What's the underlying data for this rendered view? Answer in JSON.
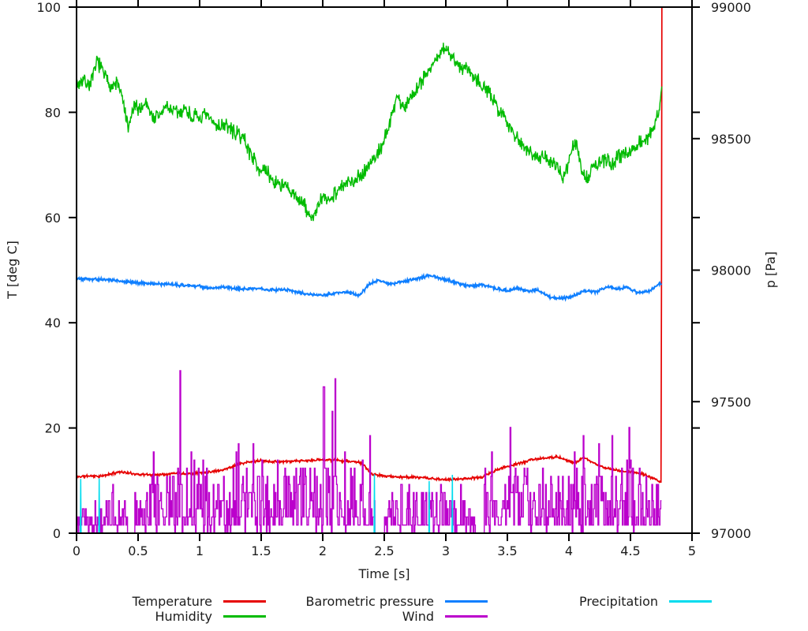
{
  "figure": {
    "background": "#ffffff",
    "text_color": "#1c1c1c",
    "axis_color": "#000000"
  },
  "chart_data": {
    "type": "line",
    "title": "",
    "grid": false,
    "legend_position": "bottom",
    "x_axis": {
      "label": "Time [s]",
      "range": [
        0,
        5
      ],
      "tick_values": [
        0,
        0.5,
        1,
        1.5,
        2,
        2.5,
        3,
        3.5,
        4,
        4.5,
        5
      ],
      "tick_labels": [
        "0",
        "0.5",
        "1",
        "1.5",
        "2",
        "2.5",
        "3",
        "3.5",
        "4",
        "4.5",
        "5"
      ]
    },
    "y_axis": {
      "label": "T [deg C]",
      "range": [
        0,
        100
      ],
      "tick_values": [
        0,
        20,
        40,
        60,
        80,
        100
      ],
      "tick_labels": [
        "0",
        "20",
        "40",
        "60",
        "80",
        "100"
      ]
    },
    "y2_axis": {
      "label": "p [Pa]",
      "range": [
        97000,
        99000
      ],
      "tick_values": [
        97000,
        97500,
        98000,
        98500,
        99000
      ],
      "tick_labels": [
        "97000",
        "97500",
        "98000",
        "98500",
        "99000"
      ]
    },
    "series": [
      {
        "name": "Temperature",
        "color": "#e60000",
        "axis": "y1",
        "style": "noisy",
        "width": 1.7,
        "noise": 0.28,
        "dt": 0.004,
        "seed": 11,
        "clamp_max": 100,
        "keypoints": [
          [
            0,
            10.7
          ],
          [
            0.1,
            10.9
          ],
          [
            0.2,
            10.8
          ],
          [
            0.3,
            11.4
          ],
          [
            0.35,
            11.7
          ],
          [
            0.4,
            11.5
          ],
          [
            0.5,
            11.2
          ],
          [
            0.6,
            11.1
          ],
          [
            0.7,
            11.2
          ],
          [
            0.8,
            11.4
          ],
          [
            0.9,
            11.3
          ],
          [
            1.0,
            11.5
          ],
          [
            1.1,
            11.7
          ],
          [
            1.2,
            12.1
          ],
          [
            1.3,
            13.0
          ],
          [
            1.35,
            13.3
          ],
          [
            1.4,
            13.5
          ],
          [
            1.5,
            13.8
          ],
          [
            1.6,
            13.6
          ],
          [
            1.7,
            13.6
          ],
          [
            1.8,
            13.7
          ],
          [
            1.9,
            13.8
          ],
          [
            2.0,
            14.0
          ],
          [
            2.1,
            13.9
          ],
          [
            2.2,
            13.7
          ],
          [
            2.3,
            13.5
          ],
          [
            2.35,
            12.5
          ],
          [
            2.4,
            11.2
          ],
          [
            2.45,
            11.0
          ],
          [
            2.5,
            10.9
          ],
          [
            2.6,
            10.7
          ],
          [
            2.8,
            10.6
          ],
          [
            2.95,
            10.2
          ],
          [
            3.05,
            10.2
          ],
          [
            3.15,
            10.4
          ],
          [
            3.25,
            10.5
          ],
          [
            3.3,
            10.7
          ],
          [
            3.4,
            11.9
          ],
          [
            3.5,
            12.7
          ],
          [
            3.6,
            13.3
          ],
          [
            3.7,
            14.0
          ],
          [
            3.8,
            14.2
          ],
          [
            3.9,
            14.6
          ],
          [
            4.0,
            13.7
          ],
          [
            4.05,
            13.4
          ],
          [
            4.12,
            14.4
          ],
          [
            4.2,
            13.3
          ],
          [
            4.3,
            12.4
          ],
          [
            4.4,
            11.9
          ],
          [
            4.5,
            11.7
          ],
          [
            4.6,
            11.3
          ],
          [
            4.65,
            10.7
          ],
          [
            4.7,
            10.3
          ],
          [
            4.74,
            9.6
          ],
          [
            4.75,
            9.5
          ],
          [
            4.755,
            100
          ]
        ]
      },
      {
        "name": "Humidity",
        "color": "#00bb00",
        "axis": "y1",
        "style": "noisy",
        "width": 1.4,
        "noise": 1.8,
        "dt": 0.004,
        "seed": 7,
        "keypoints": [
          [
            0,
            84.9
          ],
          [
            0.05,
            86.3
          ],
          [
            0.1,
            85.2
          ],
          [
            0.14,
            87.0
          ],
          [
            0.17,
            90.0
          ],
          [
            0.2,
            88.3
          ],
          [
            0.25,
            86.0
          ],
          [
            0.3,
            84.8
          ],
          [
            0.33,
            85.8
          ],
          [
            0.38,
            81.8
          ],
          [
            0.42,
            76.5
          ],
          [
            0.46,
            80.8
          ],
          [
            0.52,
            80.8
          ],
          [
            0.57,
            82.0
          ],
          [
            0.62,
            78.8
          ],
          [
            0.68,
            79.5
          ],
          [
            0.73,
            81.3
          ],
          [
            0.78,
            80.3
          ],
          [
            0.83,
            79.8
          ],
          [
            0.88,
            80.8
          ],
          [
            0.93,
            79.3
          ],
          [
            1.0,
            78.9
          ],
          [
            1.05,
            79.3
          ],
          [
            1.1,
            78.3
          ],
          [
            1.15,
            77.3
          ],
          [
            1.2,
            77.8
          ],
          [
            1.25,
            76.8
          ],
          [
            1.3,
            75.8
          ],
          [
            1.35,
            75.5
          ],
          [
            1.4,
            72.8
          ],
          [
            1.45,
            70.8
          ],
          [
            1.5,
            68.8
          ],
          [
            1.55,
            68.5
          ],
          [
            1.6,
            66.8
          ],
          [
            1.65,
            66.5
          ],
          [
            1.7,
            65.8
          ],
          [
            1.75,
            64.3
          ],
          [
            1.8,
            63.8
          ],
          [
            1.85,
            62.3
          ],
          [
            1.9,
            59.8
          ],
          [
            1.95,
            61.3
          ],
          [
            2.0,
            63.8
          ],
          [
            2.05,
            63.3
          ],
          [
            2.1,
            64.8
          ],
          [
            2.15,
            65.8
          ],
          [
            2.2,
            66.3
          ],
          [
            2.25,
            67.3
          ],
          [
            2.3,
            67.8
          ],
          [
            2.35,
            69.3
          ],
          [
            2.4,
            70.8
          ],
          [
            2.45,
            72.3
          ],
          [
            2.5,
            74.8
          ],
          [
            2.55,
            78.0
          ],
          [
            2.6,
            83.3
          ],
          [
            2.66,
            80.8
          ],
          [
            2.7,
            82.3
          ],
          [
            2.75,
            84.3
          ],
          [
            2.8,
            85.8
          ],
          [
            2.85,
            87.8
          ],
          [
            2.9,
            89.3
          ],
          [
            2.95,
            90.8
          ],
          [
            3.0,
            92.6
          ],
          [
            3.05,
            90.3
          ],
          [
            3.1,
            88.8
          ],
          [
            3.17,
            88.6
          ],
          [
            3.22,
            87.3
          ],
          [
            3.27,
            85.8
          ],
          [
            3.32,
            84.8
          ],
          [
            3.38,
            82.3
          ],
          [
            3.44,
            80.3
          ],
          [
            3.5,
            78.3
          ],
          [
            3.55,
            76.3
          ],
          [
            3.6,
            74.3
          ],
          [
            3.65,
            73.3
          ],
          [
            3.7,
            72.3
          ],
          [
            3.76,
            71.7
          ],
          [
            3.82,
            71.1
          ],
          [
            3.88,
            70.3
          ],
          [
            3.95,
            67.6
          ],
          [
            4.0,
            70.3
          ],
          [
            4.05,
            74.8
          ],
          [
            4.1,
            69.3
          ],
          [
            4.15,
            67.3
          ],
          [
            4.2,
            69.8
          ],
          [
            4.25,
            70.3
          ],
          [
            4.3,
            70.8
          ],
          [
            4.35,
            70.1
          ],
          [
            4.4,
            71.8
          ],
          [
            4.45,
            72.3
          ],
          [
            4.5,
            72.8
          ],
          [
            4.55,
            73.8
          ],
          [
            4.6,
            74.3
          ],
          [
            4.65,
            75.8
          ],
          [
            4.7,
            77.8
          ],
          [
            4.73,
            80.3
          ],
          [
            4.75,
            82.8
          ],
          [
            4.755,
            84.9
          ]
        ]
      },
      {
        "name": "Barometric pressure",
        "color": "#0f7fff",
        "axis": "y2",
        "style": "noisy",
        "width": 1.9,
        "noise": 7,
        "dt": 0.004,
        "seed": 5,
        "keypoints": [
          [
            0,
            97968
          ],
          [
            0.25,
            97964
          ],
          [
            0.5,
            97952
          ],
          [
            0.75,
            97946
          ],
          [
            1.0,
            97938
          ],
          [
            1.1,
            97932
          ],
          [
            1.2,
            97936
          ],
          [
            1.35,
            97928
          ],
          [
            1.5,
            97930
          ],
          [
            1.6,
            97924
          ],
          [
            1.7,
            97928
          ],
          [
            1.8,
            97916
          ],
          [
            1.9,
            97908
          ],
          [
            2.0,
            97904
          ],
          [
            2.1,
            97912
          ],
          [
            2.2,
            97916
          ],
          [
            2.3,
            97904
          ],
          [
            2.38,
            97948
          ],
          [
            2.45,
            97960
          ],
          [
            2.55,
            97948
          ],
          [
            2.65,
            97956
          ],
          [
            2.75,
            97966
          ],
          [
            2.87,
            97980
          ],
          [
            3.0,
            97964
          ],
          [
            3.1,
            97950
          ],
          [
            3.2,
            97940
          ],
          [
            3.3,
            97944
          ],
          [
            3.42,
            97930
          ],
          [
            3.5,
            97922
          ],
          [
            3.58,
            97932
          ],
          [
            3.67,
            97918
          ],
          [
            3.74,
            97928
          ],
          [
            3.85,
            97896
          ],
          [
            3.95,
            97890
          ],
          [
            4.05,
            97904
          ],
          [
            4.12,
            97920
          ],
          [
            4.22,
            97918
          ],
          [
            4.32,
            97938
          ],
          [
            4.4,
            97928
          ],
          [
            4.47,
            97936
          ],
          [
            4.55,
            97916
          ],
          [
            4.65,
            97918
          ],
          [
            4.72,
            97944
          ],
          [
            4.755,
            97946
          ]
        ]
      },
      {
        "name": "Wind",
        "color": "#bb00cc",
        "axis": "y1",
        "style": "wind",
        "width": 1.4,
        "seed": 99,
        "dt": 0.006,
        "t_end": 4.75,
        "quantum": 1.545,
        "base": [
          [
            0,
            2.5
          ],
          [
            0.2,
            3
          ],
          [
            0.35,
            4
          ],
          [
            0.5,
            5.5
          ],
          [
            0.7,
            6.5
          ],
          [
            0.9,
            7.5
          ],
          [
            1.1,
            6.5
          ],
          [
            1.3,
            6
          ],
          [
            1.5,
            6.5
          ],
          [
            1.7,
            7
          ],
          [
            1.9,
            7.5
          ],
          [
            2.1,
            7
          ],
          [
            2.3,
            6
          ],
          [
            2.45,
            3
          ],
          [
            2.6,
            4
          ],
          [
            2.8,
            4.5
          ],
          [
            3.0,
            4.5
          ],
          [
            3.2,
            3.5
          ],
          [
            3.45,
            5
          ],
          [
            3.6,
            6.5
          ],
          [
            3.8,
            7
          ],
          [
            4.0,
            7
          ],
          [
            4.2,
            7
          ],
          [
            4.4,
            6
          ],
          [
            4.6,
            6.5
          ],
          [
            4.75,
            5
          ]
        ],
        "spike_env": [
          [
            0,
            5
          ],
          [
            0.3,
            9
          ],
          [
            0.5,
            20
          ],
          [
            0.7,
            27
          ],
          [
            0.9,
            33
          ],
          [
            1.0,
            24
          ],
          [
            1.2,
            17
          ],
          [
            1.4,
            18
          ],
          [
            1.6,
            22
          ],
          [
            1.8,
            26
          ],
          [
            2.0,
            30
          ],
          [
            2.2,
            28
          ],
          [
            2.35,
            27
          ],
          [
            2.5,
            10
          ],
          [
            2.7,
            12
          ],
          [
            2.9,
            14
          ],
          [
            3.1,
            10
          ],
          [
            3.3,
            12
          ],
          [
            3.5,
            23
          ],
          [
            3.7,
            21
          ],
          [
            3.9,
            21
          ],
          [
            4.1,
            20
          ],
          [
            4.3,
            17
          ],
          [
            4.5,
            22
          ],
          [
            4.65,
            18
          ],
          [
            4.755,
            12
          ]
        ],
        "gaps": [
          [
            0.41,
            0.47
          ],
          [
            2.42,
            2.49
          ],
          [
            3.24,
            3.31
          ]
        ]
      },
      {
        "name": "Precipitation",
        "color": "#00dcee",
        "axis": "y1",
        "style": "exact",
        "width": 1.5,
        "keypoints": [
          [
            0,
            0
          ],
          [
            0.031,
            0
          ],
          [
            0.034,
            10.3
          ],
          [
            0.037,
            0
          ],
          [
            0.181,
            0
          ],
          [
            0.184,
            10.4
          ],
          [
            0.187,
            0
          ],
          [
            2.417,
            0
          ],
          [
            2.42,
            11.2
          ],
          [
            2.423,
            0
          ],
          [
            2.862,
            0
          ],
          [
            2.865,
            9.9
          ],
          [
            2.868,
            0
          ],
          [
            3.05,
            0
          ],
          [
            3.053,
            11.1
          ],
          [
            3.056,
            0
          ],
          [
            4.75,
            0
          ]
        ]
      }
    ]
  },
  "legend": {
    "items": [
      {
        "label": "Temperature"
      },
      {
        "label": "Humidity"
      },
      {
        "label": "Barometric pressure"
      },
      {
        "label": "Wind"
      },
      {
        "label": "Precipitation"
      }
    ]
  }
}
